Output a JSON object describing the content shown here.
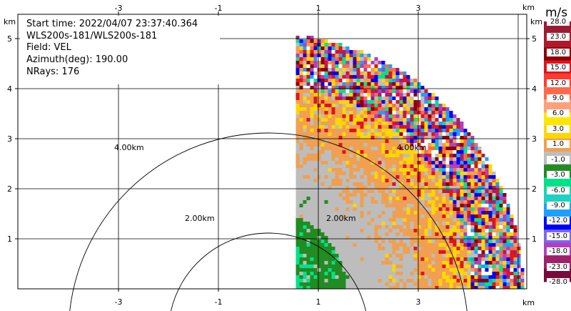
{
  "info": {
    "start_time": "Start time: 2022/04/07 23:37:40.364",
    "instrument": "WLS200s-181/WLS200s-181",
    "field": "Field: VEL",
    "azimuth": "Azimuth(deg): 190.00",
    "nrays": "NRays: 176"
  },
  "colorbar": {
    "unit": "m/s",
    "labels": [
      "28.0",
      "23.0",
      "18.0",
      "15.0",
      "12.0",
      "9.0",
      "6.0",
      "3.0",
      "1.0",
      "-1.0",
      "-3.0",
      "-6.0",
      "-9.0",
      "-12.0",
      "-15.0",
      "-18.0",
      "-23.0",
      "-28.0"
    ],
    "colors": [
      "#9b1b32",
      "#b2182b",
      "#8b0000",
      "#e0141e",
      "#ff3b2f",
      "#ff6a4a",
      "#ffa07a",
      "#ffe600",
      "#ffd700",
      "#f0a050",
      "#bdbdbd",
      "#228b22",
      "#00e28a",
      "#20d0c0",
      "#1ea0ff",
      "#0000ff",
      "#7b68ee",
      "#b040c0",
      "#a0206a",
      "#7a0a3c"
    ]
  },
  "chart_data": {
    "type": "heatmap",
    "title": "",
    "xlabel": "km",
    "ylabel": "km",
    "x_ticks": [
      -3,
      -1,
      1,
      3
    ],
    "y_ticks": [
      1,
      2,
      3,
      4,
      5
    ],
    "xlim": [
      -4.95,
      4.95
    ],
    "ylim": [
      0,
      5.55
    ],
    "grid": true,
    "range_rings": [
      {
        "radius_km": 2.0,
        "label": "2.00km"
      },
      {
        "radius_km": 4.0,
        "label": "4.00km"
      }
    ],
    "sector": {
      "x_min_km": 0.55,
      "max_range_km": 5.1,
      "angle_start_deg": 0,
      "angle_end_deg": 90
    },
    "field": "VEL",
    "unit": "m/s",
    "bands": [
      {
        "r_from_km": 0.05,
        "r_to_km": 0.6,
        "value_class": "-6.0 to -3.0"
      },
      {
        "r_from_km": 0.6,
        "r_to_km": 1.55,
        "value_class": "-3.0 to -1.0"
      },
      {
        "r_from_km": 1.55,
        "r_to_km": 3.0,
        "value_class": "-1.0 to 1.0"
      },
      {
        "r_from_km": 3.0,
        "r_to_km": 4.0,
        "value_class": "1.0 to 3.0"
      },
      {
        "r_from_km": 4.0,
        "r_to_km": 5.1,
        "value_class": "mixed noise"
      }
    ]
  }
}
